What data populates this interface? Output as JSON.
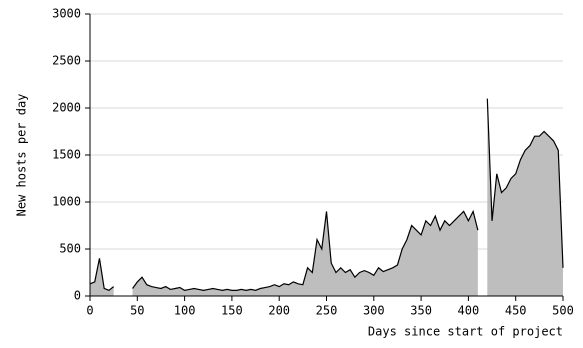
{
  "chart_data": {
    "type": "area",
    "x_label": "Days since start of project",
    "y_label": "New hosts per day",
    "x": [
      0,
      5,
      10,
      15,
      20,
      25,
      30,
      35,
      40,
      45,
      50,
      55,
      60,
      65,
      70,
      75,
      80,
      85,
      90,
      95,
      100,
      105,
      110,
      115,
      120,
      125,
      130,
      135,
      140,
      145,
      150,
      155,
      160,
      165,
      170,
      175,
      180,
      185,
      190,
      195,
      200,
      205,
      210,
      215,
      220,
      225,
      230,
      235,
      240,
      245,
      250,
      255,
      260,
      265,
      270,
      275,
      280,
      285,
      290,
      295,
      300,
      305,
      310,
      315,
      320,
      325,
      330,
      335,
      340,
      345,
      350,
      355,
      360,
      365,
      370,
      375,
      380,
      385,
      390,
      395,
      400,
      405,
      410,
      415,
      420,
      425,
      430,
      435,
      440,
      445,
      450,
      455,
      460,
      465,
      470,
      475,
      480,
      485,
      490,
      495,
      500
    ],
    "series": [
      {
        "name": "New hosts per day",
        "color": "#000000",
        "fill": "#bebebe",
        "values": [
          130,
          150,
          400,
          80,
          60,
          100,
          null,
          40,
          null,
          80,
          150,
          200,
          120,
          100,
          90,
          80,
          100,
          70,
          80,
          90,
          60,
          70,
          80,
          70,
          60,
          70,
          80,
          70,
          60,
          70,
          60,
          60,
          70,
          60,
          70,
          60,
          80,
          90,
          100,
          120,
          100,
          130,
          120,
          150,
          130,
          120,
          300,
          250,
          600,
          500,
          900,
          350,
          250,
          300,
          250,
          280,
          200,
          250,
          270,
          250,
          220,
          300,
          260,
          280,
          300,
          330,
          500,
          600,
          750,
          700,
          650,
          800,
          750,
          850,
          700,
          800,
          750,
          800,
          850,
          900,
          800,
          900,
          700,
          null,
          2100,
          800,
          1300,
          1100,
          1150,
          1250,
          1300,
          1450,
          1550,
          1600,
          1700,
          1700,
          1750,
          1700,
          1650,
          1550,
          300
        ]
      }
    ],
    "xlim": [
      0,
      500
    ],
    "xticks": [
      0,
      50,
      100,
      150,
      200,
      250,
      300,
      350,
      400,
      450,
      500
    ],
    "ylim": [
      0,
      3000
    ],
    "yticks": [
      0,
      500,
      1000,
      1500,
      2000,
      2500,
      3000
    ],
    "grid": true
  }
}
